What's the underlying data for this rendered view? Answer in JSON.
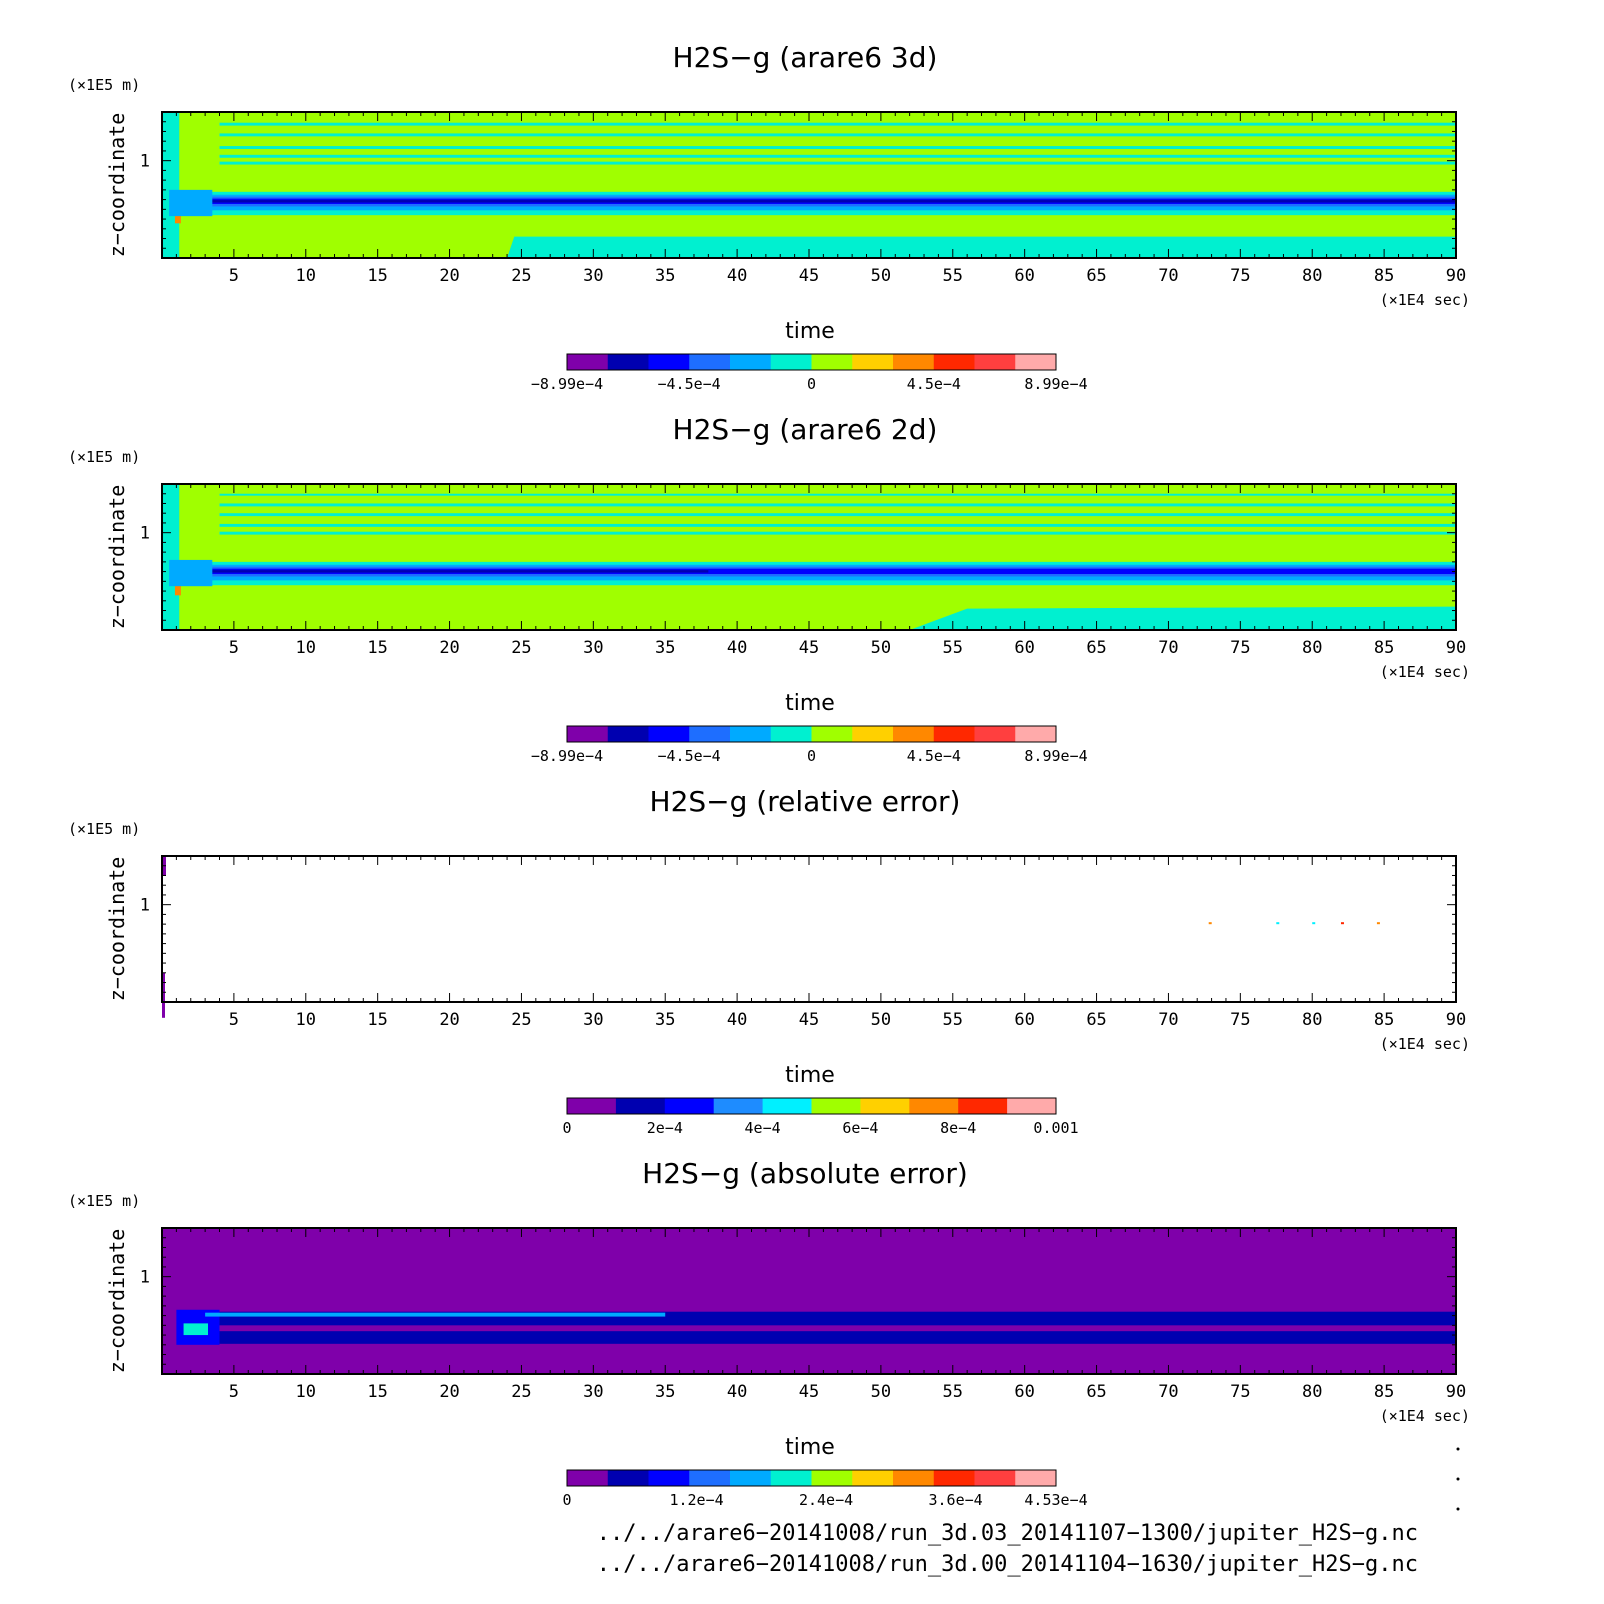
{
  "chart_data": [
    {
      "type": "heatmap",
      "title": "H2S−g (arare6 3d)",
      "xlabel": "time",
      "x_unit": "(×1E4 sec)",
      "ylabel": "z−coordinate",
      "y_unit": "(×1E5 m)",
      "xlim": [
        0,
        90
      ],
      "ylim": [
        0,
        1.5
      ],
      "x_ticks": [
        "5",
        "10",
        "15",
        "20",
        "25",
        "30",
        "35",
        "40",
        "45",
        "50",
        "55",
        "60",
        "65",
        "70",
        "75",
        "80",
        "85",
        "90"
      ],
      "y_ticks": [
        "1"
      ],
      "colorbar": {
        "range": [
          -0.000899,
          0.000899
        ],
        "labels": [
          "−8.99e−4",
          "−4.5e−4",
          "0",
          "4.5e−4",
          "8.99e−4"
        ],
        "colors": [
          "#7f00aa",
          "#0000b0",
          "#0000ff",
          "#1e6eff",
          "#00aaff",
          "#00f0d0",
          "#a0ff00",
          "#ffd000",
          "#ff8800",
          "#ff2800",
          "#ff3f3f",
          "#ffaaaa"
        ]
      }
    },
    {
      "type": "heatmap",
      "title": "H2S−g (arare6 2d)",
      "xlabel": "time",
      "x_unit": "(×1E4 sec)",
      "ylabel": "z−coordinate",
      "y_unit": "(×1E5 m)",
      "xlim": [
        0,
        90
      ],
      "ylim": [
        0,
        1.5
      ],
      "x_ticks": [
        "5",
        "10",
        "15",
        "20",
        "25",
        "30",
        "35",
        "40",
        "45",
        "50",
        "55",
        "60",
        "65",
        "70",
        "75",
        "80",
        "85",
        "90"
      ],
      "y_ticks": [
        "1"
      ],
      "colorbar": {
        "range": [
          -0.000899,
          0.000899
        ],
        "labels": [
          "−8.99e−4",
          "−4.5e−4",
          "0",
          "4.5e−4",
          "8.99e−4"
        ],
        "colors": [
          "#7f00aa",
          "#0000b0",
          "#0000ff",
          "#1e6eff",
          "#00aaff",
          "#00f0d0",
          "#a0ff00",
          "#ffd000",
          "#ff8800",
          "#ff2800",
          "#ff3f3f",
          "#ffaaaa"
        ]
      }
    },
    {
      "type": "heatmap",
      "title": "H2S−g (relative error)",
      "xlabel": "time",
      "x_unit": "(×1E4 sec)",
      "ylabel": "z−coordinate",
      "y_unit": "(×1E5 m)",
      "xlim": [
        0,
        90
      ],
      "ylim": [
        0,
        1.5
      ],
      "x_ticks": [
        "5",
        "10",
        "15",
        "20",
        "25",
        "30",
        "35",
        "40",
        "45",
        "50",
        "55",
        "60",
        "65",
        "70",
        "75",
        "80",
        "85",
        "90"
      ],
      "y_ticks": [
        "1"
      ],
      "colorbar": {
        "range": [
          0,
          0.001
        ],
        "labels": [
          "0",
          "2e−4",
          "4e−4",
          "6e−4",
          "8e−4",
          "0.001"
        ],
        "colors": [
          "#7f00aa",
          "#0000b0",
          "#0000ff",
          "#1e8cff",
          "#00f0ff",
          "#a0ff00",
          "#ffd000",
          "#ff8800",
          "#ff2800",
          "#ffaaaa"
        ]
      }
    },
    {
      "type": "heatmap",
      "title": "H2S−g (absolute error)",
      "xlabel": "time",
      "x_unit": "(×1E4 sec)",
      "ylabel": "z−coordinate",
      "y_unit": "(×1E5 m)",
      "xlim": [
        0,
        90
      ],
      "ylim": [
        0,
        1.5
      ],
      "x_ticks": [
        "5",
        "10",
        "15",
        "20",
        "25",
        "30",
        "35",
        "40",
        "45",
        "50",
        "55",
        "60",
        "65",
        "70",
        "75",
        "80",
        "85",
        "90"
      ],
      "y_ticks": [
        "1"
      ],
      "colorbar": {
        "range": [
          0,
          0.000453
        ],
        "labels": [
          "0",
          "1.2e−4",
          "2.4e−4",
          "3.6e−4",
          "4.53e−4"
        ],
        "colors": [
          "#7f00aa",
          "#0000b0",
          "#0000ff",
          "#1e6eff",
          "#00aaff",
          "#00f0d0",
          "#a0ff00",
          "#ffd000",
          "#ff8800",
          "#ff2800",
          "#ff3f3f",
          "#ffaaaa"
        ]
      }
    }
  ],
  "footer": {
    "line1": "../../arare6−20141008/run_3d.03_20141107−1300/jupiter_H2S−g.nc",
    "line2": "../../arare6−20141008/run_3d.00_20141104−1630/jupiter_H2S−g.nc"
  }
}
